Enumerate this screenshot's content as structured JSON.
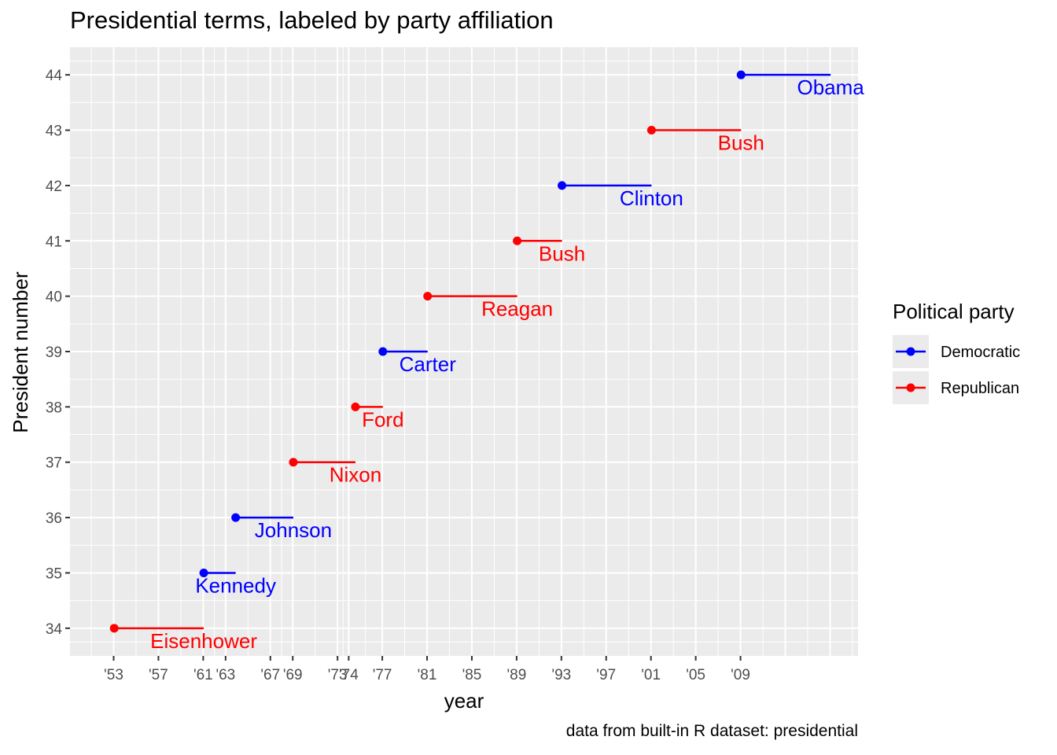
{
  "chart_data": {
    "type": "line",
    "title": "Presidential terms, labeled by party affiliation",
    "caption": "data from built-in R dataset: presidential",
    "xlabel": "year",
    "ylabel": "President number",
    "xlim": [
      1949.1,
      2019.5
    ],
    "ylim": [
      33.5,
      44.5
    ],
    "y_ticks": [
      34,
      35,
      36,
      37,
      38,
      39,
      40,
      41,
      42,
      43,
      44
    ],
    "x_major_ticks": [
      {
        "year": 1953,
        "label": "'53"
      },
      {
        "year": 1957,
        "label": "'57"
      },
      {
        "year": 1961,
        "label": "'61"
      },
      {
        "year": 1963,
        "label": "'63"
      },
      {
        "year": 1967,
        "label": "'67"
      },
      {
        "year": 1969,
        "label": "'69"
      },
      {
        "year": 1973,
        "label": "'73"
      },
      {
        "year": 1974,
        "label": "'74"
      },
      {
        "year": 1977,
        "label": "'77"
      },
      {
        "year": 1981,
        "label": "'81"
      },
      {
        "year": 1985,
        "label": "'85"
      },
      {
        "year": 1989,
        "label": "'89"
      },
      {
        "year": 1993,
        "label": "'93"
      },
      {
        "year": 1997,
        "label": "'97"
      },
      {
        "year": 2001,
        "label": "'01"
      },
      {
        "year": 2005,
        "label": "'05"
      },
      {
        "year": 2009,
        "label": "'09"
      }
    ],
    "grid": true,
    "legend": {
      "title": "Political party",
      "placement": "right",
      "entries": [
        {
          "label": "Democratic",
          "color": "#0000FF"
        },
        {
          "label": "Republican",
          "color": "#FF0000"
        }
      ]
    },
    "party_colors": {
      "Democratic": "#0000FF",
      "Republican": "#FF0000"
    },
    "terms": [
      {
        "name": "Eisenhower",
        "number": 34,
        "start": 1953.05,
        "end": 1961.05,
        "party": "Republican"
      },
      {
        "name": "Kennedy",
        "number": 35,
        "start": 1961.05,
        "end": 1963.9,
        "party": "Democratic"
      },
      {
        "name": "Johnson",
        "number": 36,
        "start": 1963.9,
        "end": 1969.05,
        "party": "Democratic"
      },
      {
        "name": "Nixon",
        "number": 37,
        "start": 1969.05,
        "end": 1974.6,
        "party": "Republican"
      },
      {
        "name": "Ford",
        "number": 38,
        "start": 1974.6,
        "end": 1977.05,
        "party": "Republican"
      },
      {
        "name": "Carter",
        "number": 39,
        "start": 1977.05,
        "end": 1981.05,
        "party": "Democratic"
      },
      {
        "name": "Reagan",
        "number": 40,
        "start": 1981.05,
        "end": 1989.05,
        "party": "Republican"
      },
      {
        "name": "Bush",
        "number": 41,
        "start": 1989.05,
        "end": 1993.05,
        "party": "Republican"
      },
      {
        "name": "Clinton",
        "number": 42,
        "start": 1993.05,
        "end": 2001.05,
        "party": "Democratic"
      },
      {
        "name": "Bush",
        "number": 43,
        "start": 2001.05,
        "end": 2009.05,
        "party": "Republican"
      },
      {
        "name": "Obama",
        "number": 44,
        "start": 2009.05,
        "end": 2017.05,
        "party": "Democratic"
      }
    ]
  }
}
